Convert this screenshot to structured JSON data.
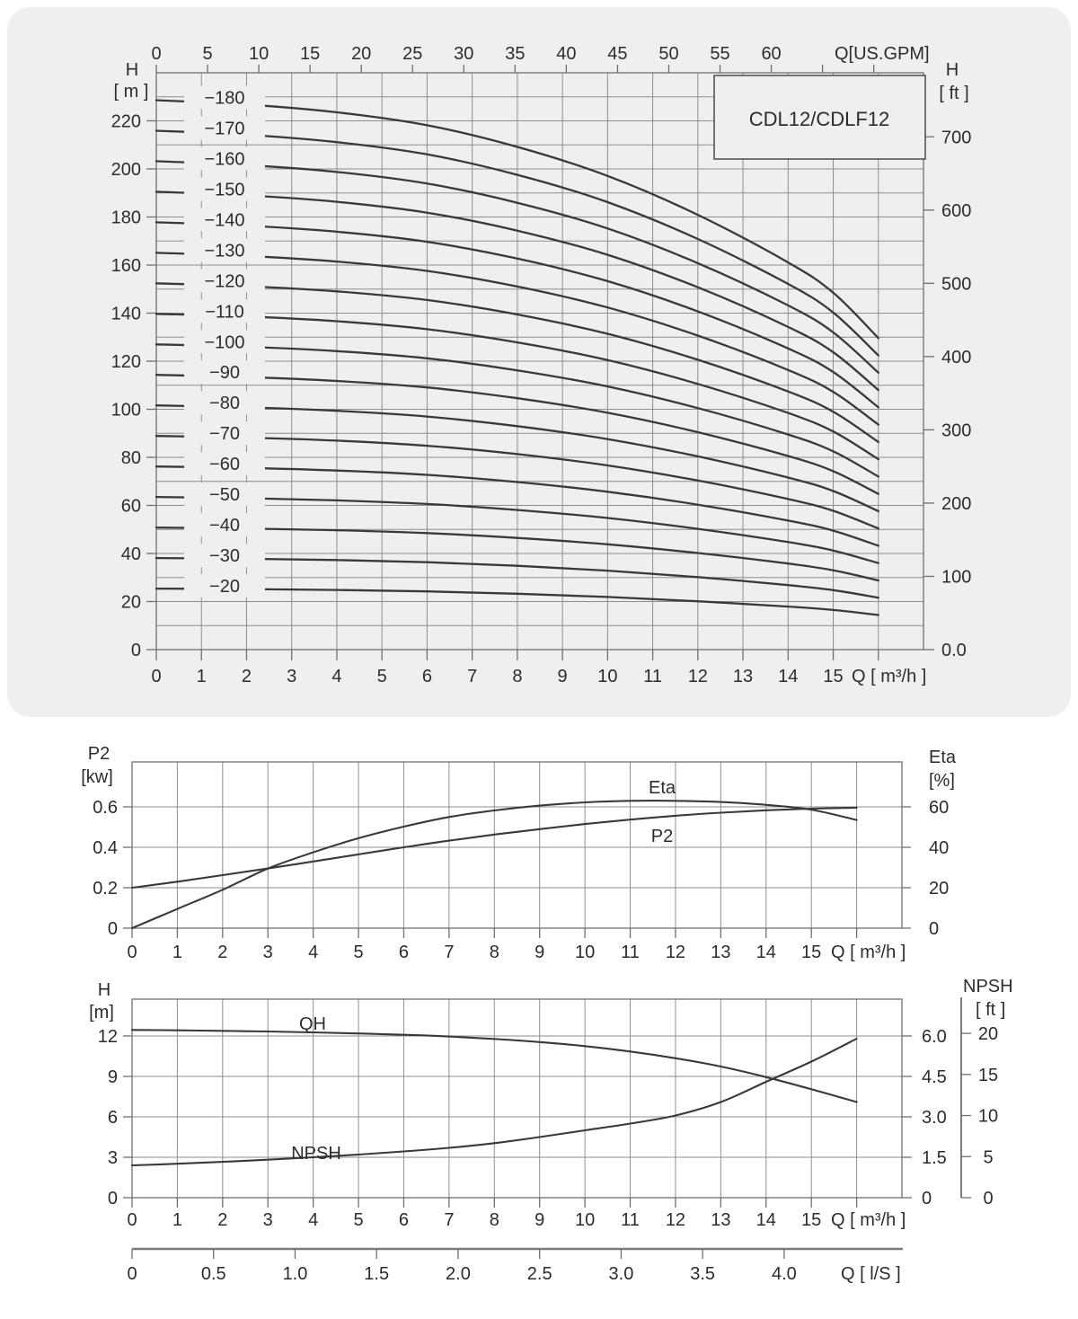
{
  "page": {
    "background": "#ffffff",
    "panel_background": "#efefef",
    "grid_color": "#8e8e8e",
    "axis_color": "#6f6f6f",
    "curve_color": "#39393b",
    "text_color": "#2c2c2c",
    "model_label": "CDL12/CDLF12"
  },
  "chart_data": [
    {
      "id": "hq-family",
      "type": "line",
      "title": "CDL12/CDLF12",
      "x_axis_bottom": {
        "label": "Q [ m³/h ]",
        "ticks": [
          0,
          1,
          2,
          3,
          4,
          5,
          6,
          7,
          8,
          9,
          10,
          11,
          12,
          13,
          14,
          15
        ],
        "range": [
          0,
          17
        ],
        "grid_step": 1
      },
      "x_axis_top": {
        "label": "Q[US.GPM]",
        "ticks": [
          0,
          5,
          10,
          15,
          20,
          25,
          30,
          35,
          40,
          45,
          50,
          55,
          60
        ],
        "unlabeled_ticks": [
          65,
          70
        ],
        "gpm_per_m3h": 4.4029
      },
      "y_axis_left": {
        "title_lines": [
          "H",
          "[ m ]"
        ],
        "ticks": [
          0,
          20,
          40,
          60,
          80,
          100,
          120,
          140,
          160,
          180,
          200,
          220
        ],
        "grid_step": 10,
        "range": [
          0,
          240
        ]
      },
      "y_axis_right": {
        "title_lines": [
          "H",
          "[ ft ]"
        ],
        "tick_values_ft": [
          0,
          100,
          200,
          300,
          400,
          500,
          600,
          700
        ],
        "tick_labels": [
          "0.0",
          "100",
          "200",
          "300",
          "400",
          "500",
          "600",
          "700"
        ],
        "m_per_ft": 0.3048
      },
      "unit_curve_per_stage": {
        "q_m3h": [
          0,
          2,
          4,
          6,
          8,
          10,
          12,
          14,
          15,
          16
        ],
        "head_m": [
          12.7,
          12.6,
          12.42,
          12.12,
          11.62,
          10.95,
          10.05,
          8.95,
          8.25,
          7.2
        ]
      },
      "curves": [
        {
          "label": "−20",
          "stages": 2
        },
        {
          "label": "−30",
          "stages": 3
        },
        {
          "label": "−40",
          "stages": 4
        },
        {
          "label": "−50",
          "stages": 5
        },
        {
          "label": "−60",
          "stages": 6
        },
        {
          "label": "−70",
          "stages": 7
        },
        {
          "label": "−80",
          "stages": 8
        },
        {
          "label": "−90",
          "stages": 9
        },
        {
          "label": "−100",
          "stages": 10
        },
        {
          "label": "−110",
          "stages": 11
        },
        {
          "label": "−120",
          "stages": 12
        },
        {
          "label": "−130",
          "stages": 13
        },
        {
          "label": "−140",
          "stages": 14
        },
        {
          "label": "−150",
          "stages": 15
        },
        {
          "label": "−160",
          "stages": 16
        },
        {
          "label": "−170",
          "stages": 17
        },
        {
          "label": "−180",
          "stages": 18
        }
      ]
    },
    {
      "id": "power-efficiency",
      "type": "line",
      "x_axis": {
        "label": "Q [ m³/h ]",
        "ticks": [
          0,
          1,
          2,
          3,
          4,
          5,
          6,
          7,
          8,
          9,
          10,
          11,
          12,
          13,
          14,
          15
        ],
        "range": [
          0,
          17
        ]
      },
      "y_axis_left": {
        "title_lines": [
          "P2",
          "[kw]"
        ],
        "tick_labels": [
          "0",
          "0.2",
          "0.4",
          "0.6"
        ],
        "tick_values": [
          0,
          0.2,
          0.4,
          0.6
        ],
        "range": [
          0,
          0.82
        ]
      },
      "y_axis_right": {
        "title_lines": [
          "Eta",
          "[%]"
        ],
        "tick_values": [
          0,
          20,
          40,
          60
        ]
      },
      "series": [
        {
          "name": "P2",
          "label": "P2",
          "q_m3h": [
            0,
            1,
            2,
            3,
            4,
            5,
            6,
            7,
            8,
            9,
            10,
            11,
            12,
            13,
            14,
            15,
            16
          ],
          "kw": [
            0.2,
            0.23,
            0.262,
            0.295,
            0.33,
            0.365,
            0.4,
            0.433,
            0.463,
            0.49,
            0.515,
            0.537,
            0.556,
            0.571,
            0.583,
            0.591,
            0.596
          ]
        },
        {
          "name": "Eta",
          "label": "Eta",
          "q_m3h": [
            0,
            1,
            2,
            3,
            4,
            5,
            6,
            7,
            8,
            9,
            10,
            11,
            12,
            13,
            14,
            15,
            16
          ],
          "pct": [
            0,
            9.5,
            19,
            29.5,
            37.5,
            44.5,
            50.2,
            55,
            58.2,
            60.6,
            62.2,
            63,
            63,
            62.4,
            61,
            58.6,
            53.5
          ]
        }
      ]
    },
    {
      "id": "qh-npsh",
      "type": "line",
      "x_axis": {
        "label": "Q [ m³/h ]",
        "ticks": [
          0,
          1,
          2,
          3,
          4,
          5,
          6,
          7,
          8,
          9,
          10,
          11,
          12,
          13,
          14,
          15
        ],
        "range": [
          0,
          17
        ]
      },
      "y_axis_left": {
        "title_lines": [
          "H",
          "[m]"
        ],
        "tick_values": [
          0,
          3,
          6,
          9,
          12
        ],
        "range": [
          0,
          14.75
        ]
      },
      "y_axis_right_inner": {
        "tick_labels": [
          "0",
          "1.5",
          "3.0",
          "4.5",
          "6.0"
        ],
        "tick_values_m": [
          0,
          1.5,
          3.0,
          4.5,
          6.0
        ]
      },
      "y_axis_right_outer": {
        "title_lines": [
          "NPSH",
          "[ ft ]"
        ],
        "tick_values_ft": [
          0,
          5,
          10,
          15,
          20
        ],
        "m_per_ft": 0.3048
      },
      "series": [
        {
          "name": "QH",
          "label": "QH",
          "q_m3h": [
            0,
            1,
            2,
            3,
            4,
            5,
            6,
            7,
            8,
            9,
            10,
            11,
            12,
            13,
            14,
            15,
            16
          ],
          "head_m": [
            12.45,
            12.42,
            12.38,
            12.33,
            12.27,
            12.19,
            12.09,
            11.96,
            11.78,
            11.55,
            11.25,
            10.85,
            10.35,
            9.73,
            8.95,
            8.05,
            7.1
          ]
        },
        {
          "name": "NPSH",
          "label": "NPSH",
          "q_m3h": [
            0,
            1,
            2,
            3,
            4,
            5,
            6,
            7,
            8,
            9,
            10,
            11,
            12,
            13,
            14,
            15,
            16
          ],
          "npsh_m": [
            1.2,
            1.26,
            1.33,
            1.41,
            1.5,
            1.6,
            1.715,
            1.85,
            2.025,
            2.25,
            2.5,
            2.75,
            3.05,
            3.55,
            4.3,
            5.05,
            5.9
          ]
        }
      ]
    },
    {
      "id": "flow-scale-ls",
      "type": "axis",
      "label": "Q [ l/S ]",
      "tick_labels": [
        "0",
        "0.5",
        "1.0",
        "1.5",
        "2.0",
        "2.5",
        "3.0",
        "3.5",
        "4.0"
      ],
      "tick_values": [
        0,
        0.5,
        1.0,
        1.5,
        2.0,
        2.5,
        3.0,
        3.5,
        4.0
      ],
      "m3h_per_ls": 3.6
    }
  ]
}
